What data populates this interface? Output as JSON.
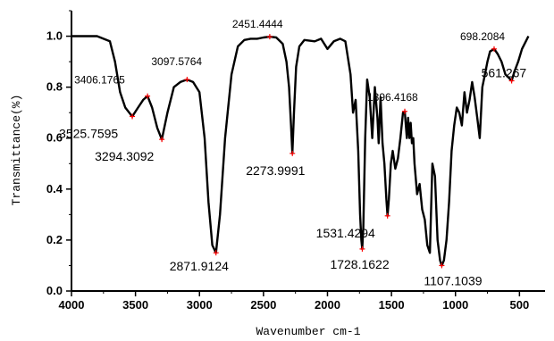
{
  "chart_data": {
    "type": "line",
    "xlabel": "Wavenumber cm-1",
    "ylabel": "Transmittance(%)",
    "xlim": [
      4000,
      300
    ],
    "ylim": [
      0.0,
      1.1
    ],
    "x_ticks": [
      4000,
      3500,
      3000,
      2500,
      2000,
      1500,
      1000,
      500
    ],
    "y_ticks": [
      0.0,
      0.2,
      0.4,
      0.6,
      0.8,
      1.0
    ],
    "x_tick_labels": [
      "4000",
      "3500",
      "3000",
      "2500",
      "2000",
      "1500",
      "1000",
      "500"
    ],
    "y_tick_labels": [
      "0.0",
      "0.2",
      "0.4",
      "0.6",
      "0.8",
      "1.0"
    ],
    "grid": false,
    "series": [
      {
        "x": [
          4000,
          3900,
          3800,
          3750,
          3700,
          3660,
          3620,
          3580,
          3525,
          3480,
          3440,
          3406,
          3370,
          3330,
          3294,
          3250,
          3200,
          3150,
          3097,
          3050,
          3000,
          2960,
          2930,
          2900,
          2871,
          2840,
          2800,
          2750,
          2700,
          2650,
          2600,
          2550,
          2500,
          2451,
          2400,
          2350,
          2320,
          2300,
          2285,
          2274,
          2262,
          2245,
          2220,
          2180,
          2100,
          2050,
          2000,
          1950,
          1900,
          1860,
          1820,
          1800,
          1780,
          1760,
          1745,
          1735,
          1728,
          1720,
          1705,
          1690,
          1670,
          1650,
          1630,
          1610,
          1600,
          1585,
          1570,
          1555,
          1540,
          1531,
          1520,
          1505,
          1490,
          1470,
          1450,
          1430,
          1410,
          1396,
          1380,
          1370,
          1360,
          1350,
          1340,
          1330,
          1320,
          1300,
          1280,
          1260,
          1240,
          1220,
          1200,
          1180,
          1160,
          1140,
          1120,
          1107,
          1090,
          1070,
          1050,
          1030,
          1010,
          990,
          970,
          950,
          930,
          910,
          890,
          870,
          850,
          830,
          810,
          790,
          770,
          750,
          730,
          698,
          670,
          640,
          610,
          590,
          561,
          540,
          510,
          480,
          450,
          430
        ],
        "y": [
          1.0,
          1.0,
          1.0,
          0.99,
          0.98,
          0.9,
          0.78,
          0.72,
          0.685,
          0.72,
          0.75,
          0.765,
          0.72,
          0.64,
          0.595,
          0.7,
          0.8,
          0.82,
          0.83,
          0.82,
          0.78,
          0.6,
          0.35,
          0.18,
          0.15,
          0.3,
          0.6,
          0.85,
          0.96,
          0.985,
          0.99,
          0.99,
          0.995,
          0.998,
          0.995,
          0.97,
          0.9,
          0.8,
          0.65,
          0.54,
          0.7,
          0.88,
          0.96,
          0.985,
          0.98,
          0.99,
          0.95,
          0.98,
          0.99,
          0.98,
          0.85,
          0.7,
          0.75,
          0.55,
          0.3,
          0.2,
          0.165,
          0.25,
          0.6,
          0.83,
          0.76,
          0.6,
          0.8,
          0.68,
          0.58,
          0.76,
          0.58,
          0.5,
          0.36,
          0.295,
          0.36,
          0.5,
          0.55,
          0.48,
          0.52,
          0.6,
          0.7,
          0.705,
          0.6,
          0.68,
          0.6,
          0.66,
          0.58,
          0.6,
          0.5,
          0.38,
          0.42,
          0.32,
          0.28,
          0.18,
          0.15,
          0.5,
          0.45,
          0.2,
          0.12,
          0.1,
          0.12,
          0.2,
          0.35,
          0.55,
          0.65,
          0.72,
          0.7,
          0.65,
          0.78,
          0.7,
          0.75,
          0.82,
          0.76,
          0.68,
          0.6,
          0.8,
          0.85,
          0.9,
          0.94,
          0.95,
          0.93,
          0.9,
          0.85,
          0.84,
          0.825,
          0.86,
          0.9,
          0.95,
          0.98,
          1.0
        ]
      }
    ],
    "peaks": [
      {
        "x": 3525,
        "y": 0.685,
        "label": "3525.7595",
        "style": "big",
        "dx": -82,
        "dy": 24
      },
      {
        "x": 3406,
        "y": 0.765,
        "label": "3406.1765",
        "style": "small",
        "dx": -82,
        "dy": -14
      },
      {
        "x": 3294,
        "y": 0.595,
        "label": "3294.3092",
        "style": "big",
        "dx": -75,
        "dy": 24
      },
      {
        "x": 3097,
        "y": 0.83,
        "label": "3097.5764",
        "style": "small",
        "dx": -40,
        "dy": -16
      },
      {
        "x": 2871,
        "y": 0.15,
        "label": "2871.9124",
        "style": "big",
        "dx": -52,
        "dy": 20
      },
      {
        "x": 2451,
        "y": 0.998,
        "label": "2451.4444",
        "style": "small",
        "dx": -42,
        "dy": -10
      },
      {
        "x": 2274,
        "y": 0.54,
        "label": "2273.9991",
        "style": "big",
        "dx": -52,
        "dy": 24
      },
      {
        "x": 1728,
        "y": 0.165,
        "label": "1728.1622",
        "style": "big",
        "dx": -36,
        "dy": 22
      },
      {
        "x": 1531,
        "y": 0.295,
        "label": "1531.4294",
        "style": "big",
        "dx": -80,
        "dy": 24
      },
      {
        "x": 1396,
        "y": 0.705,
        "label": "1396.4168",
        "style": "small",
        "dx": -42,
        "dy": -12
      },
      {
        "x": 1107,
        "y": 0.1,
        "label": "1107.1039",
        "style": "big",
        "dx": -20,
        "dy": 22
      },
      {
        "x": 698,
        "y": 0.95,
        "label": "698.2084",
        "style": "small",
        "dx": -38,
        "dy": -10
      },
      {
        "x": 561,
        "y": 0.825,
        "label": "561.267",
        "style": "big",
        "dx": -34,
        "dy": -4
      }
    ],
    "line_color": "#000000",
    "marker_color": "#ff0000"
  }
}
